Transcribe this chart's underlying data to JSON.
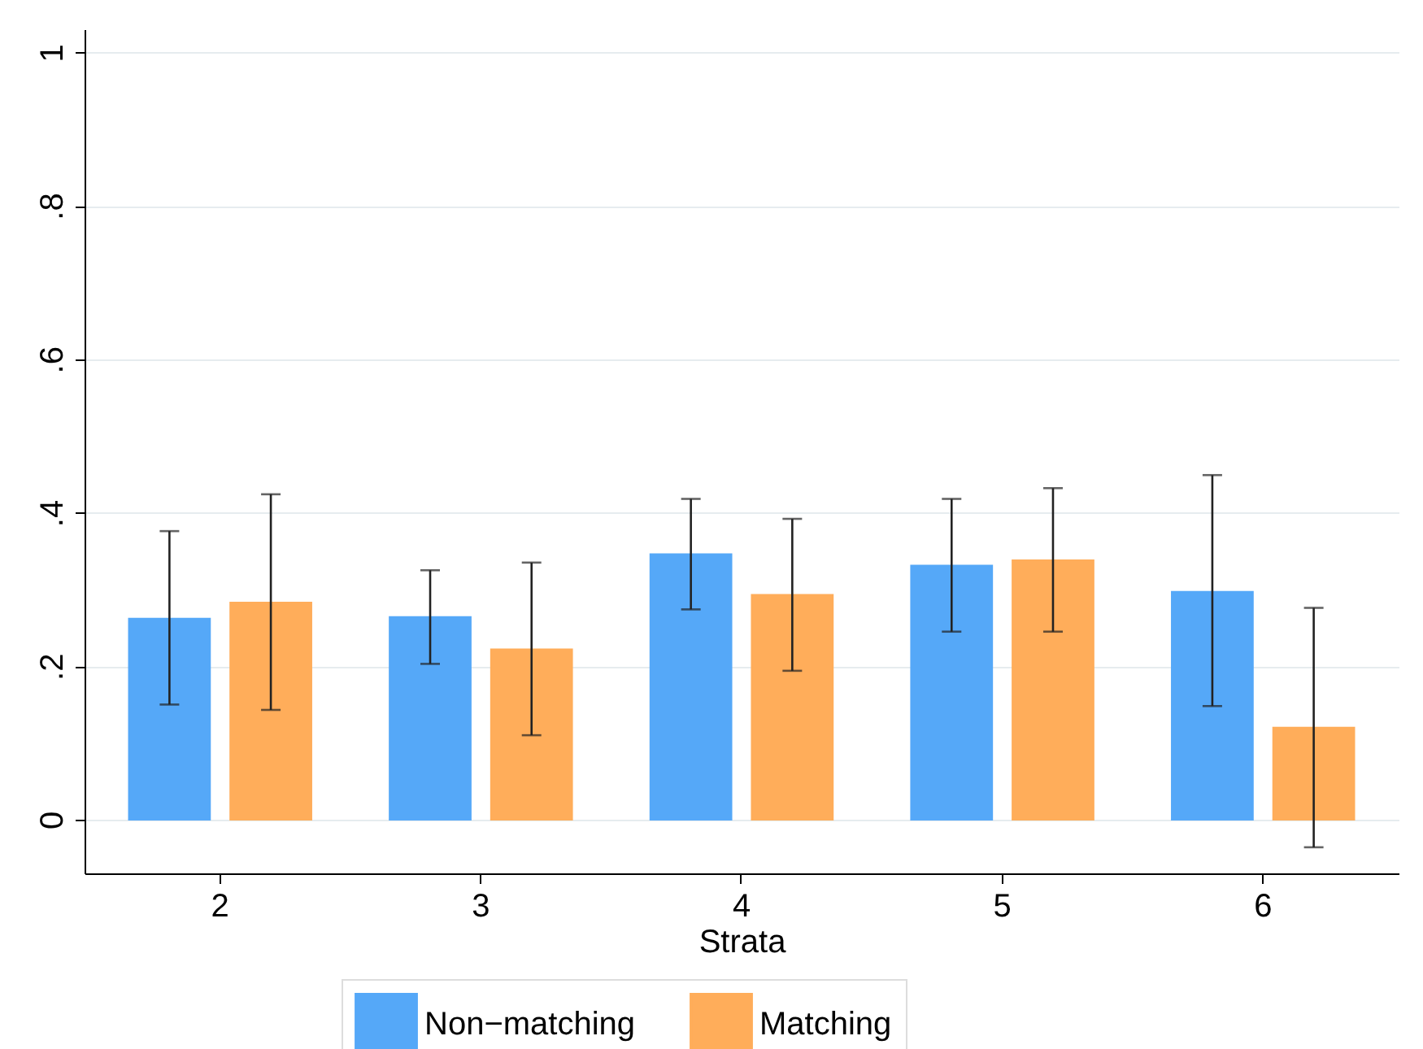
{
  "chart_data": {
    "type": "bar",
    "xlabel": "Strata",
    "categories": [
      "2",
      "3",
      "4",
      "5",
      "6"
    ],
    "series": [
      {
        "name": "Non−matching",
        "color": "#55a8f8",
        "values": [
          0.262,
          0.264,
          0.346,
          0.331,
          0.297
        ],
        "errors": [
          [
            0.15,
            0.376
          ],
          [
            0.203,
            0.325
          ],
          [
            0.274,
            0.418
          ],
          [
            0.245,
            0.418
          ],
          [
            0.148,
            0.449
          ]
        ]
      },
      {
        "name": "Matching",
        "color": "#ffad5a",
        "values": [
          0.283,
          0.222,
          0.293,
          0.338,
          0.12
        ],
        "errors": [
          [
            0.143,
            0.424
          ],
          [
            0.11,
            0.335
          ],
          [
            0.194,
            0.392
          ],
          [
            0.245,
            0.432
          ],
          [
            -0.036,
            0.276
          ]
        ]
      }
    ],
    "ylim": [
      -0.07,
      1.03
    ],
    "yticks": [
      {
        "value": 0,
        "label": "0"
      },
      {
        "value": 0.2,
        "label": ".2"
      },
      {
        "value": 0.4,
        "label": ".4"
      },
      {
        "value": 0.6,
        "label": ".6"
      },
      {
        "value": 0.8,
        "label": ".8"
      },
      {
        "value": 1,
        "label": "1"
      }
    ],
    "grid": "y",
    "legend": "bottom"
  }
}
